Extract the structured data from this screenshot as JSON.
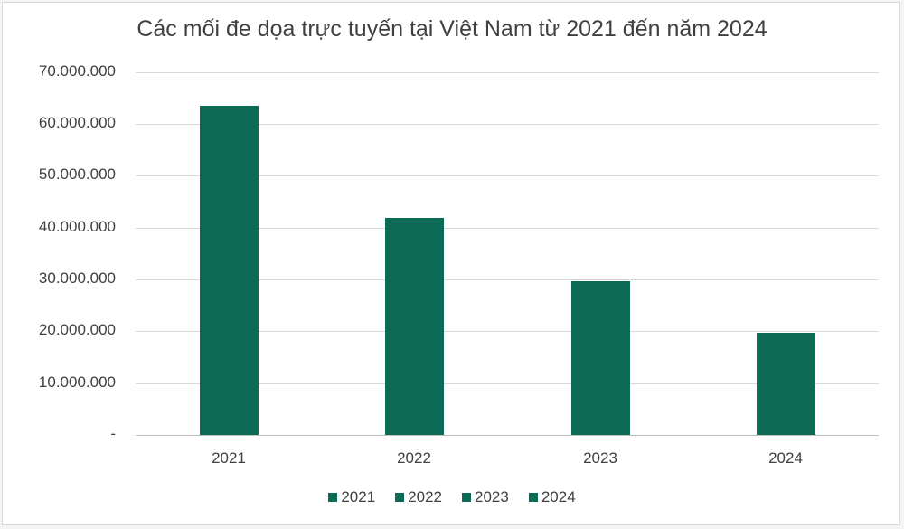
{
  "chart_data": {
    "type": "bar",
    "title": "Các mối đe dọa trực tuyến tại Việt Nam từ 2021 đến năm 2024",
    "categories": [
      "2021",
      "2022",
      "2023",
      "2024"
    ],
    "values": [
      63500000,
      41800000,
      29600000,
      19700000
    ],
    "xlabel": "",
    "ylabel": "",
    "ylim": [
      0,
      70000000
    ],
    "yticks": [
      "-",
      "10.000.000",
      "20.000.000",
      "30.000.000",
      "40.000.000",
      "50.000.000",
      "60.000.000",
      "70.000.000"
    ],
    "grid": true,
    "legend": {
      "position": "bottom",
      "entries": [
        "2021",
        "2022",
        "2023",
        "2024"
      ]
    },
    "bar_color": "#0c6b57"
  }
}
